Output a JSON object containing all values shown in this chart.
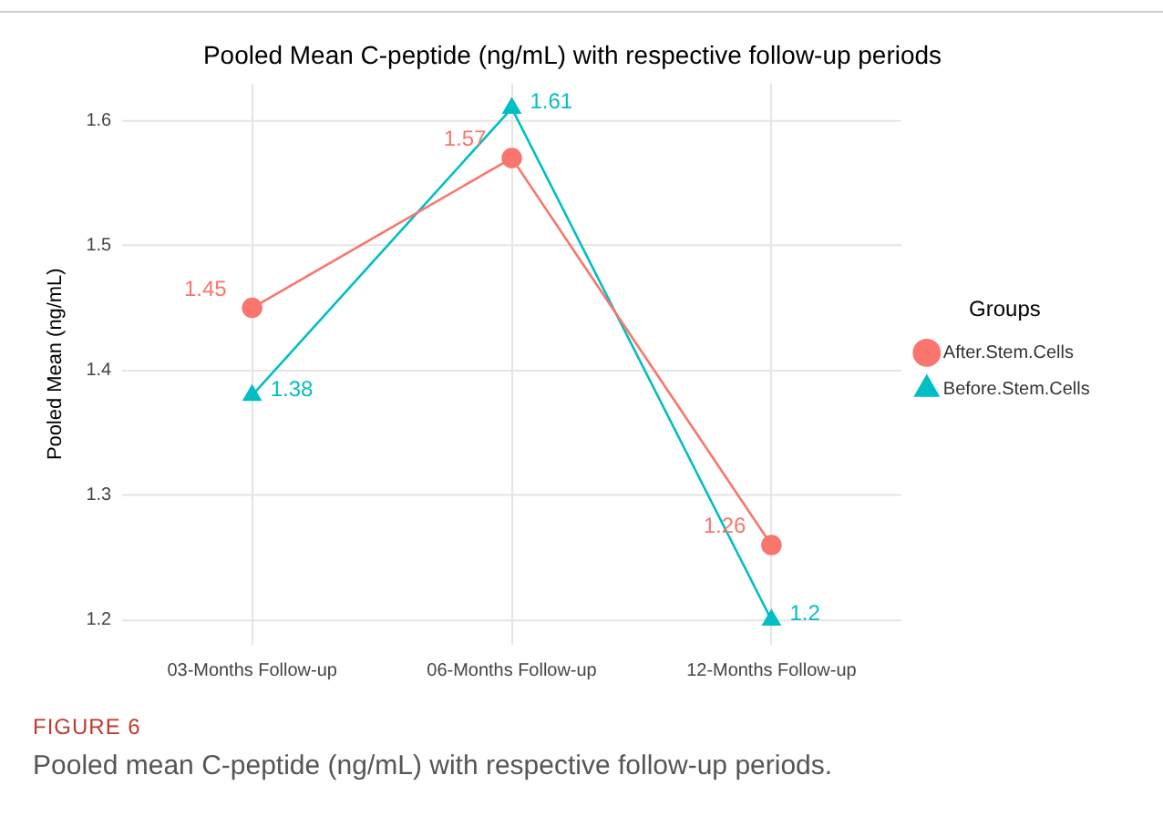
{
  "chart_data": {
    "type": "line",
    "title": "Pooled Mean C-peptide (ng/mL) with respective follow-up periods",
    "ylabel": "Pooled Mean (ng/mL)",
    "legend_title": "Groups",
    "categories": [
      "03-Months Follow-up",
      "06-Months Follow-up",
      "12-Months Follow-up"
    ],
    "series": [
      {
        "name": "After.Stem.Cells",
        "color": "#f8766d",
        "marker": "circle",
        "values": [
          1.45,
          1.57,
          1.26
        ]
      },
      {
        "name": "Before.Stem.Cells",
        "color": "#00bfc4",
        "marker": "triangle",
        "values": [
          1.38,
          1.61,
          1.2
        ]
      }
    ],
    "ylim": [
      1.18,
      1.63
    ],
    "yticks": [
      1.2,
      1.3,
      1.4,
      1.5,
      1.6
    ],
    "grid": true,
    "legend": "right",
    "data_labels": true,
    "annotations": [
      "FIGURE 6",
      "Pooled mean C-peptide (ng/mL) with respective follow-up periods."
    ]
  }
}
